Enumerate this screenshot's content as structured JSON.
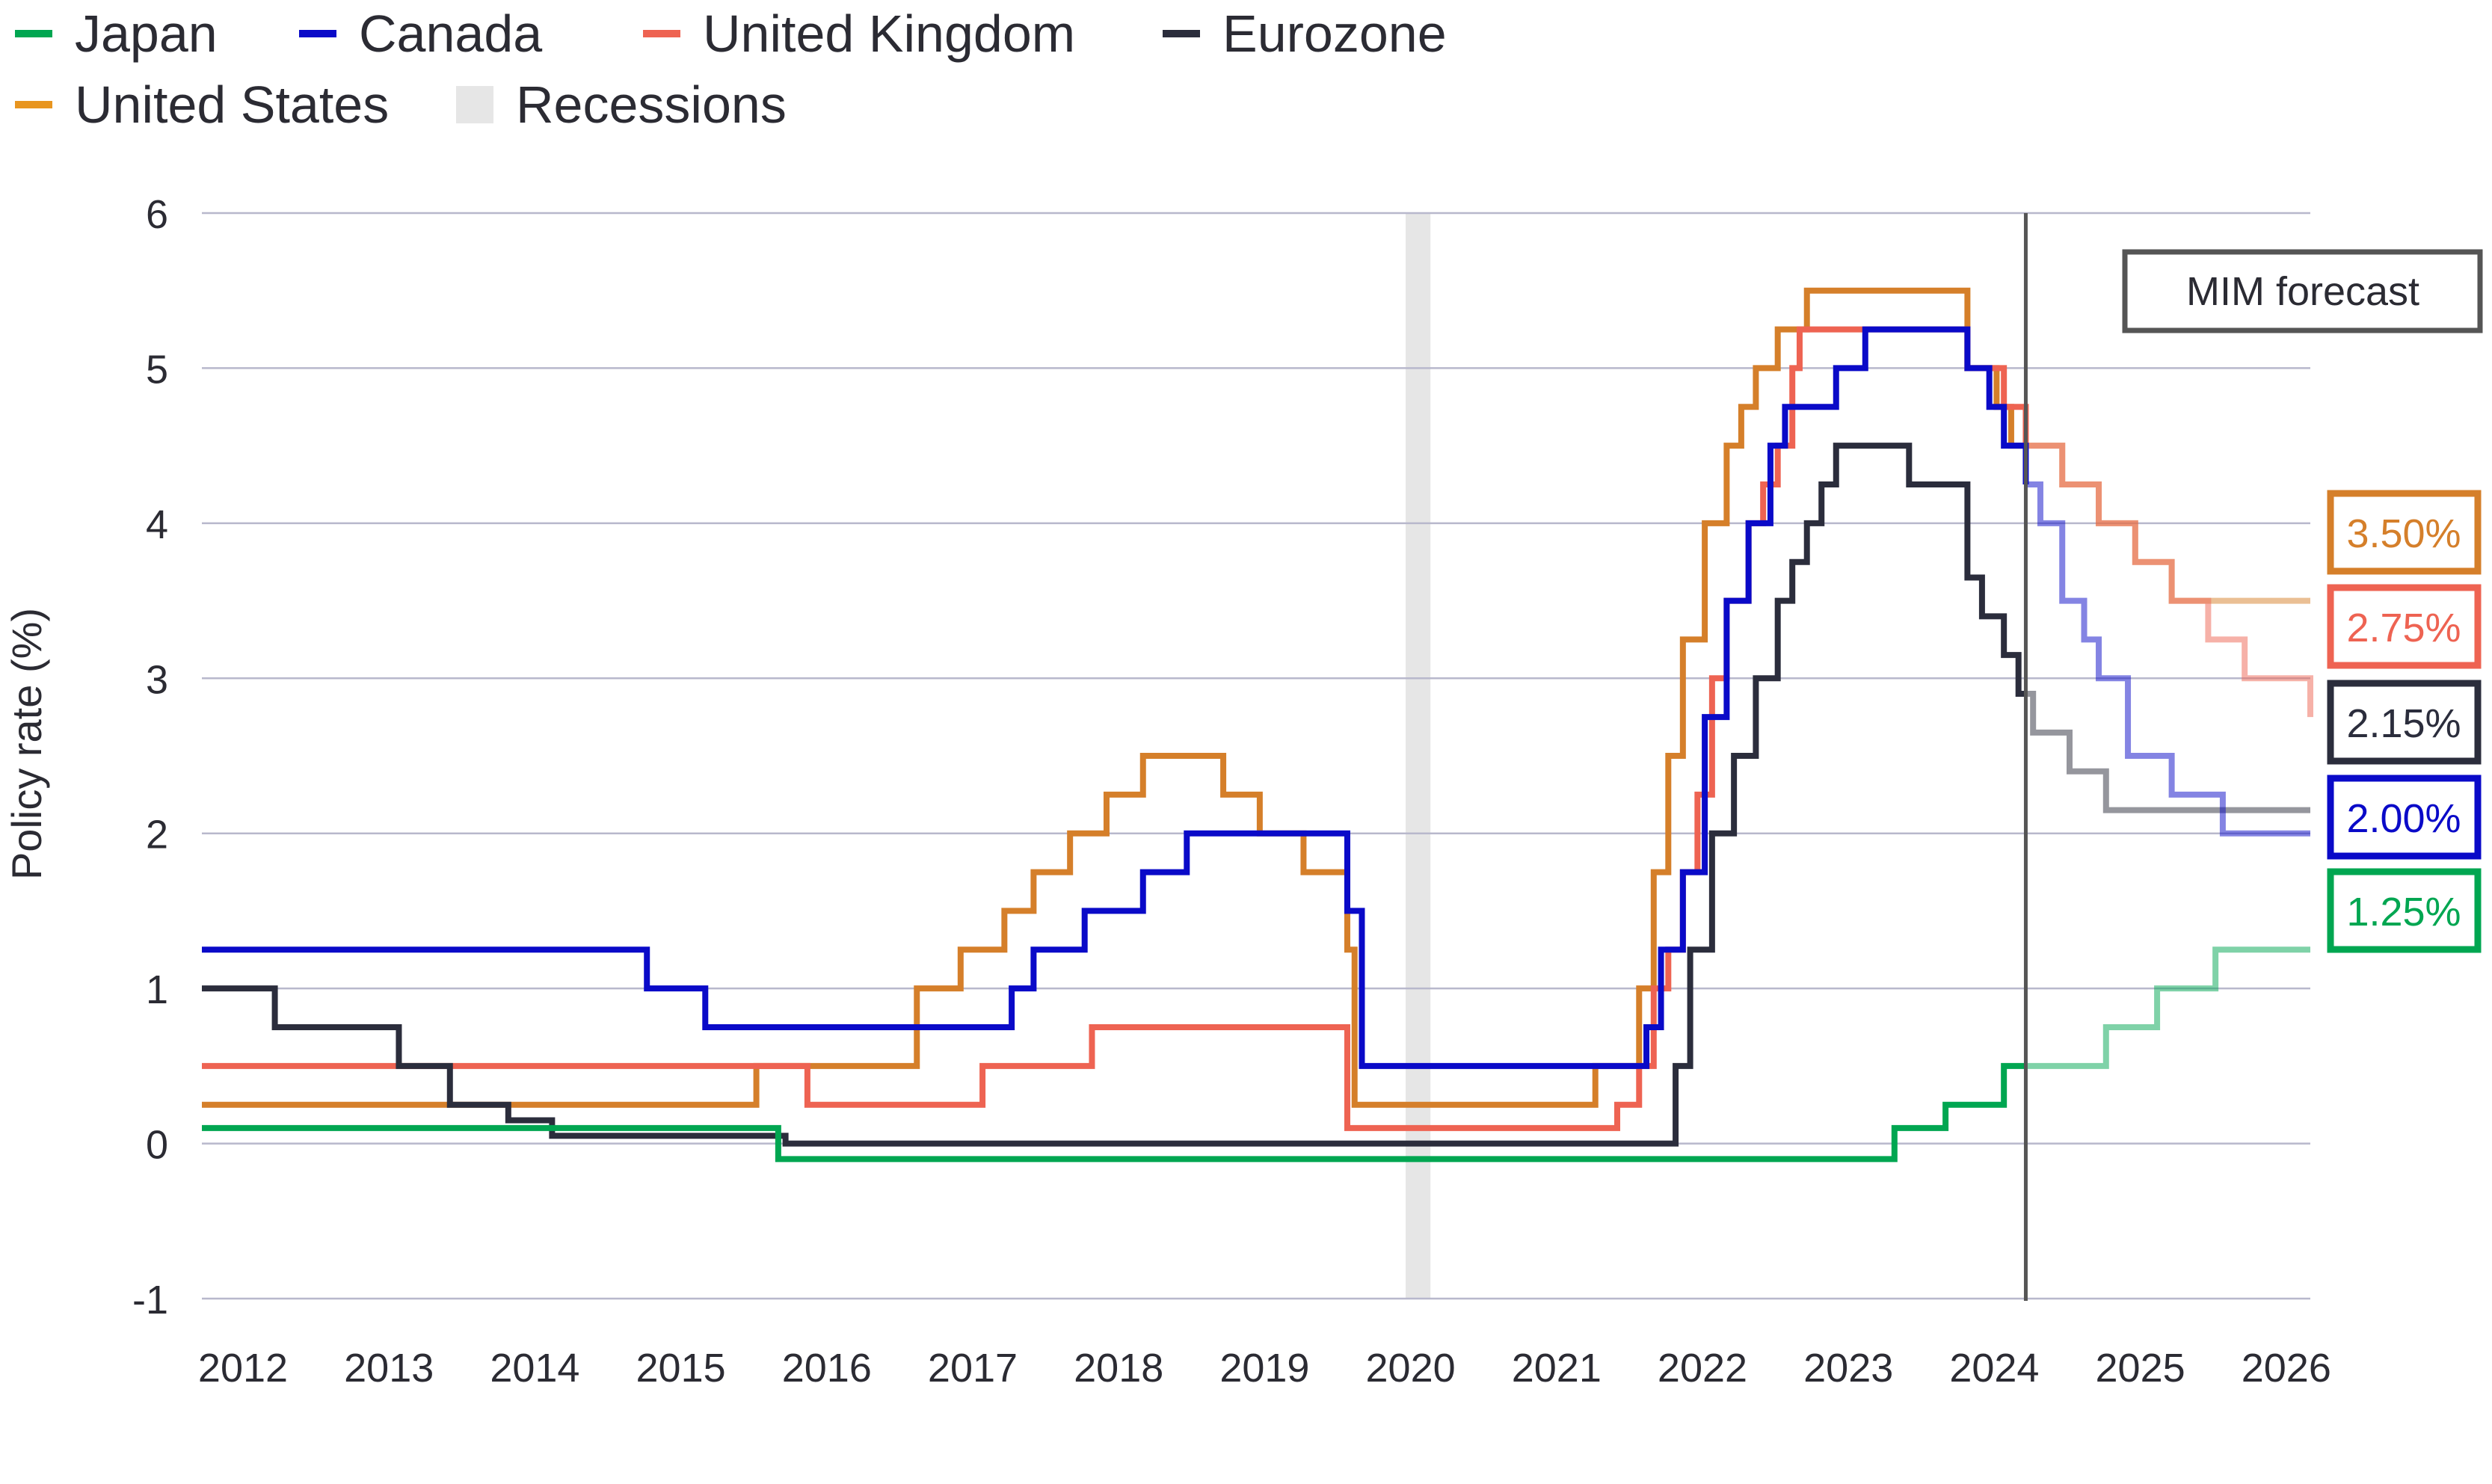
{
  "legend": {
    "japan": "Japan",
    "canada": "Canada",
    "uk": "United Kingdom",
    "eurozone": "Eurozone",
    "us": "United States",
    "recessions": "Recessions"
  },
  "colors": {
    "japan": "#00a651",
    "canada": "#0a0ac8",
    "uk": "#ee6352",
    "eurozone": "#2b2d3c",
    "us": "#d57f2a",
    "recession": "#e6e6e6",
    "grid": "#b8b8cc",
    "forecast_line": "#555555"
  },
  "chart_data": {
    "type": "line",
    "step": true,
    "ylabel": "Policy rate (%)",
    "xlabel": "",
    "ylim": [
      -1,
      6
    ],
    "yticks": [
      -1,
      0,
      1,
      2,
      3,
      4,
      5,
      6
    ],
    "xlim": [
      2012,
      2026.5
    ],
    "xticks": [
      2012,
      2013,
      2014,
      2015,
      2016,
      2017,
      2018,
      2019,
      2020,
      2021,
      2022,
      2023,
      2024,
      2025,
      2026
    ],
    "grid": true,
    "legend_position": "top-left",
    "forecast_start": 2024.5,
    "forecast_label": "MIM forecast",
    "recessions": [
      [
        2020.25,
        2020.42
      ]
    ],
    "series": [
      {
        "name": "United States",
        "key": "us",
        "end_label": "3.50%",
        "points": [
          [
            2012,
            0.25
          ],
          [
            2015.8,
            0.5
          ],
          [
            2016.4,
            0.5
          ],
          [
            2016.9,
            1.0
          ],
          [
            2017.2,
            1.25
          ],
          [
            2017.5,
            1.5
          ],
          [
            2017.7,
            1.75
          ],
          [
            2017.95,
            2.0
          ],
          [
            2018.2,
            2.25
          ],
          [
            2018.45,
            2.5
          ],
          [
            2019.0,
            2.25
          ],
          [
            2019.25,
            2.0
          ],
          [
            2019.55,
            1.75
          ],
          [
            2019.85,
            1.25
          ],
          [
            2019.9,
            0.25
          ],
          [
            2021.55,
            0.5
          ],
          [
            2021.85,
            1.0
          ],
          [
            2021.95,
            1.75
          ],
          [
            2022.05,
            2.5
          ],
          [
            2022.15,
            3.25
          ],
          [
            2022.3,
            4.0
          ],
          [
            2022.45,
            4.5
          ],
          [
            2022.55,
            4.75
          ],
          [
            2022.65,
            5.0
          ],
          [
            2022.8,
            5.25
          ],
          [
            2023.0,
            5.5
          ],
          [
            2024.1,
            5.0
          ],
          [
            2024.3,
            4.75
          ],
          [
            2024.4,
            4.5
          ],
          [
            2024.5,
            4.5
          ],
          [
            2024.75,
            4.25
          ],
          [
            2025.0,
            4.0
          ],
          [
            2025.25,
            3.75
          ],
          [
            2025.5,
            3.5
          ],
          [
            2026.45,
            3.5
          ]
        ]
      },
      {
        "name": "United Kingdom",
        "key": "uk",
        "end_label": "2.75%",
        "points": [
          [
            2012,
            0.5
          ],
          [
            2016.15,
            0.25
          ],
          [
            2017.35,
            0.5
          ],
          [
            2018.1,
            0.75
          ],
          [
            2019.85,
            0.1
          ],
          [
            2021.7,
            0.25
          ],
          [
            2021.85,
            0.5
          ],
          [
            2021.95,
            1.0
          ],
          [
            2022.05,
            1.25
          ],
          [
            2022.15,
            1.75
          ],
          [
            2022.25,
            2.25
          ],
          [
            2022.35,
            3.0
          ],
          [
            2022.45,
            3.5
          ],
          [
            2022.6,
            4.0
          ],
          [
            2022.7,
            4.25
          ],
          [
            2022.8,
            4.5
          ],
          [
            2022.9,
            5.0
          ],
          [
            2022.95,
            5.25
          ],
          [
            2024.1,
            5.0
          ],
          [
            2024.35,
            4.75
          ],
          [
            2024.5,
            4.5
          ],
          [
            2024.75,
            4.25
          ],
          [
            2025.0,
            4.0
          ],
          [
            2025.25,
            3.75
          ],
          [
            2025.5,
            3.5
          ],
          [
            2025.75,
            3.25
          ],
          [
            2026.0,
            3.0
          ],
          [
            2026.45,
            2.75
          ]
        ]
      },
      {
        "name": "Eurozone",
        "key": "eurozone",
        "end_label": "2.15%",
        "points": [
          [
            2012,
            1.0
          ],
          [
            2012.5,
            0.75
          ],
          [
            2013.35,
            0.5
          ],
          [
            2013.7,
            0.25
          ],
          [
            2014.1,
            0.15
          ],
          [
            2014.4,
            0.05
          ],
          [
            2016.0,
            0.0
          ],
          [
            2022.1,
            0.5
          ],
          [
            2022.2,
            1.25
          ],
          [
            2022.35,
            2.0
          ],
          [
            2022.5,
            2.5
          ],
          [
            2022.65,
            3.0
          ],
          [
            2022.8,
            3.5
          ],
          [
            2022.9,
            3.75
          ],
          [
            2023.0,
            4.0
          ],
          [
            2023.1,
            4.25
          ],
          [
            2023.2,
            4.5
          ],
          [
            2023.6,
            4.5
          ],
          [
            2023.7,
            4.25
          ],
          [
            2024.05,
            4.25
          ],
          [
            2024.1,
            3.65
          ],
          [
            2024.2,
            3.4
          ],
          [
            2024.35,
            3.15
          ],
          [
            2024.45,
            2.9
          ],
          [
            2024.55,
            2.65
          ],
          [
            2024.8,
            2.4
          ],
          [
            2025.05,
            2.15
          ],
          [
            2026.45,
            2.15
          ]
        ]
      },
      {
        "name": "Canada",
        "key": "canada",
        "end_label": "2.00%",
        "points": [
          [
            2012,
            1.25
          ],
          [
            2015.05,
            1.0
          ],
          [
            2015.45,
            0.75
          ],
          [
            2017.55,
            1.0
          ],
          [
            2017.7,
            1.25
          ],
          [
            2018.05,
            1.5
          ],
          [
            2018.45,
            1.75
          ],
          [
            2018.75,
            2.0
          ],
          [
            2019.8,
            2.0
          ],
          [
            2019.85,
            1.5
          ],
          [
            2019.95,
            0.5
          ],
          [
            2021.8,
            0.5
          ],
          [
            2021.9,
            0.75
          ],
          [
            2022.0,
            1.25
          ],
          [
            2022.15,
            1.75
          ],
          [
            2022.3,
            2.75
          ],
          [
            2022.45,
            3.5
          ],
          [
            2022.6,
            4.0
          ],
          [
            2022.75,
            4.5
          ],
          [
            2022.85,
            4.75
          ],
          [
            2023.2,
            5.0
          ],
          [
            2023.4,
            5.25
          ],
          [
            2023.95,
            5.25
          ],
          [
            2024.1,
            5.0
          ],
          [
            2024.25,
            4.75
          ],
          [
            2024.35,
            4.5
          ],
          [
            2024.5,
            4.25
          ],
          [
            2024.6,
            4.0
          ],
          [
            2024.75,
            3.5
          ],
          [
            2024.9,
            3.25
          ],
          [
            2025.0,
            3.0
          ],
          [
            2025.2,
            2.5
          ],
          [
            2025.5,
            2.25
          ],
          [
            2025.85,
            2.0
          ],
          [
            2026.45,
            2.0
          ]
        ]
      },
      {
        "name": "Japan",
        "key": "japan",
        "end_label": "1.25%",
        "points": [
          [
            2012,
            0.1
          ],
          [
            2015.95,
            -0.1
          ],
          [
            2023.6,
            0.1
          ],
          [
            2023.95,
            0.25
          ],
          [
            2024.35,
            0.5
          ],
          [
            2025.05,
            0.75
          ],
          [
            2025.4,
            1.0
          ],
          [
            2025.8,
            1.25
          ],
          [
            2026.45,
            1.25
          ]
        ]
      }
    ]
  }
}
